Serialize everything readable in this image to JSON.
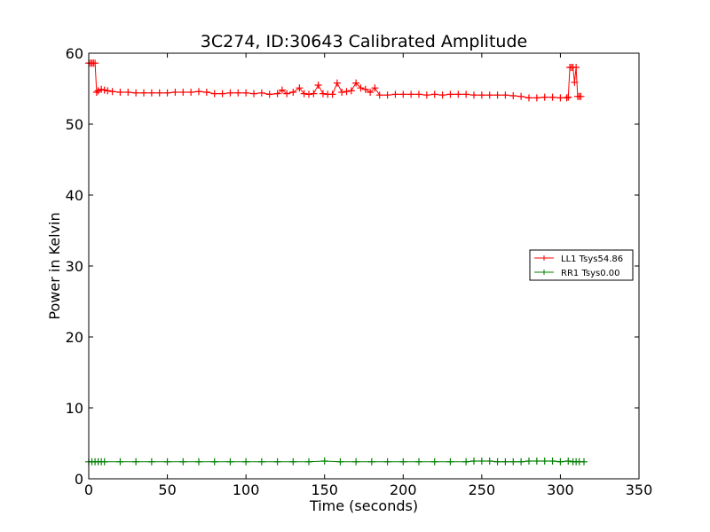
{
  "chart_data": {
    "type": "line",
    "title": "3C274, ID:30643 Calibrated Amplitude",
    "xlabel": "Time (seconds)",
    "ylabel": "Power in Kelvin",
    "xlim": [
      0,
      350
    ],
    "ylim": [
      0,
      60
    ],
    "xticks": [
      "0",
      "50",
      "100",
      "150",
      "200",
      "250",
      "300",
      "350"
    ],
    "yticks": [
      "0",
      "10",
      "20",
      "30",
      "40",
      "50",
      "60"
    ],
    "grid": false,
    "legend_position": "right",
    "series": [
      {
        "name": "LL1 Tsys54.86",
        "color": "#ff0000",
        "marker": "+",
        "x": [
          0,
          1,
          2,
          3,
          4,
          5,
          6,
          8,
          10,
          12,
          15,
          20,
          25,
          30,
          35,
          40,
          45,
          50,
          55,
          60,
          65,
          70,
          75,
          80,
          85,
          90,
          95,
          100,
          105,
          110,
          115,
          120,
          123,
          126,
          130,
          134,
          137,
          140,
          143,
          146,
          149,
          152,
          155,
          158,
          161,
          164,
          167,
          170,
          173,
          176,
          179,
          182,
          185,
          190,
          195,
          200,
          205,
          210,
          215,
          220,
          225,
          230,
          235,
          240,
          245,
          250,
          255,
          260,
          265,
          270,
          275,
          280,
          285,
          290,
          295,
          300,
          304,
          305,
          306,
          307,
          308,
          309,
          310,
          311,
          312,
          313
        ],
        "y": [
          58.6,
          58.6,
          58.6,
          58.6,
          58.6,
          54.5,
          54.7,
          54.9,
          54.8,
          54.7,
          54.6,
          54.5,
          54.5,
          54.4,
          54.4,
          54.4,
          54.4,
          54.4,
          54.5,
          54.5,
          54.5,
          54.6,
          54.5,
          54.3,
          54.3,
          54.4,
          54.4,
          54.4,
          54.3,
          54.4,
          54.2,
          54.3,
          54.8,
          54.3,
          54.5,
          55.1,
          54.3,
          54.2,
          54.3,
          55.5,
          54.3,
          54.2,
          54.2,
          55.8,
          54.5,
          54.6,
          54.7,
          55.8,
          55.1,
          54.9,
          54.5,
          55.1,
          54.1,
          54.1,
          54.2,
          54.2,
          54.2,
          54.2,
          54.1,
          54.2,
          54.1,
          54.2,
          54.2,
          54.2,
          54.1,
          54.1,
          54.1,
          54.1,
          54.1,
          54.0,
          53.9,
          53.7,
          53.7,
          53.8,
          53.8,
          53.7,
          53.7,
          53.8,
          58.0,
          58.0,
          58.0,
          55.9,
          58.0,
          53.9,
          53.9,
          53.9
        ]
      },
      {
        "name": "RR1 Tsys0.00",
        "color": "#008000",
        "marker": "+",
        "x": [
          0,
          2,
          4,
          6,
          8,
          10,
          20,
          30,
          40,
          50,
          60,
          70,
          80,
          90,
          100,
          110,
          120,
          130,
          140,
          150,
          160,
          170,
          180,
          190,
          200,
          210,
          220,
          230,
          240,
          245,
          250,
          255,
          260,
          265,
          270,
          275,
          280,
          285,
          290,
          295,
          300,
          305,
          308,
          310,
          312,
          315
        ],
        "y": [
          2.4,
          2.4,
          2.4,
          2.4,
          2.4,
          2.4,
          2.4,
          2.4,
          2.4,
          2.4,
          2.4,
          2.4,
          2.4,
          2.4,
          2.4,
          2.4,
          2.4,
          2.4,
          2.4,
          2.5,
          2.4,
          2.4,
          2.4,
          2.4,
          2.4,
          2.4,
          2.4,
          2.4,
          2.4,
          2.5,
          2.5,
          2.5,
          2.4,
          2.4,
          2.4,
          2.4,
          2.5,
          2.5,
          2.5,
          2.5,
          2.4,
          2.5,
          2.4,
          2.4,
          2.4,
          2.4
        ]
      }
    ]
  }
}
